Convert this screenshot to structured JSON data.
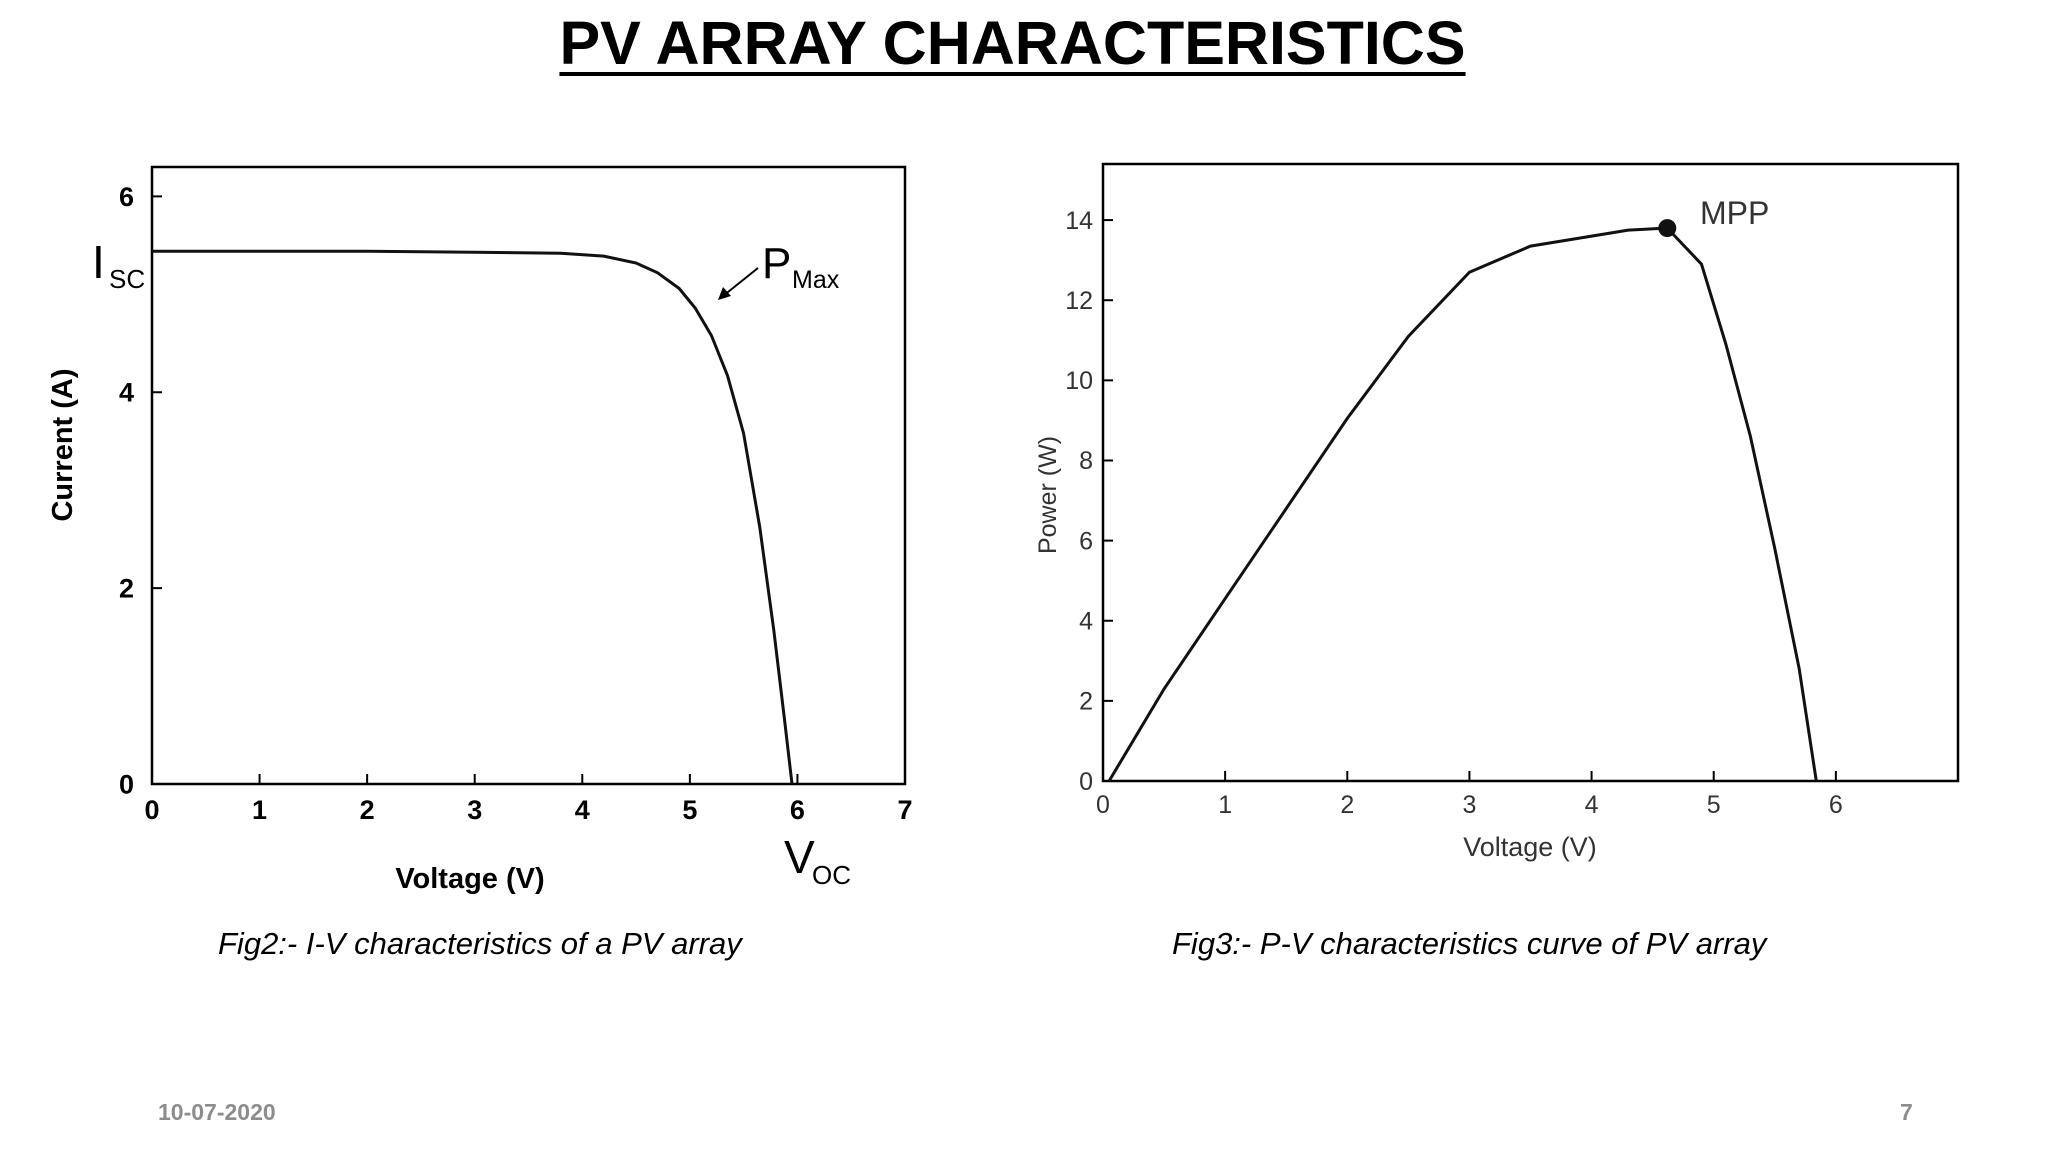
{
  "slide": {
    "title": "PV ARRAY CHARACTERISTICS",
    "date": "10-07-2020",
    "page_number": "7"
  },
  "chart_data": [
    {
      "type": "line",
      "caption": "Fig2:- I-V characteristics of a PV array",
      "xlabel": "Voltage (V)",
      "ylabel": "Current (A)",
      "xlim": [
        0,
        7
      ],
      "ylim": [
        0,
        6.3
      ],
      "x_ticks": [
        0,
        1,
        2,
        3,
        4,
        5,
        6,
        7
      ],
      "y_ticks": [
        0,
        2,
        4,
        6
      ],
      "grid": false,
      "annotations": {
        "isc_main": "I",
        "isc_sub": "SC",
        "pmax_main": "P",
        "pmax_sub": "Max",
        "voc_main": "V",
        "voc_sub": "OC"
      },
      "series": [
        {
          "points": [
            [
              0,
              5.44
            ],
            [
              1,
              5.44
            ],
            [
              2,
              5.44
            ],
            [
              3,
              5.43
            ],
            [
              3.8,
              5.42
            ],
            [
              4.2,
              5.39
            ],
            [
              4.5,
              5.32
            ],
            [
              4.7,
              5.22
            ],
            [
              4.9,
              5.06
            ],
            [
              5.05,
              4.86
            ],
            [
              5.2,
              4.58
            ],
            [
              5.35,
              4.17
            ],
            [
              5.5,
              3.58
            ],
            [
              5.65,
              2.62
            ],
            [
              5.78,
              1.57
            ],
            [
              5.88,
              0.66
            ],
            [
              5.95,
              0
            ]
          ],
          "color": "#111111"
        }
      ]
    },
    {
      "type": "line",
      "caption": "Fig3:- P-V characteristics curve of PV array",
      "xlabel": "Voltage (V)",
      "ylabel": "Power (W)",
      "xlim": [
        0,
        7
      ],
      "ylim": [
        0,
        15.4
      ],
      "x_ticks": [
        0,
        1,
        2,
        3,
        4,
        5,
        6
      ],
      "y_ticks": [
        0,
        2,
        4,
        6,
        8,
        10,
        12,
        14
      ],
      "grid": false,
      "annotation": "MPP",
      "mpp": [
        4.62,
        13.8
      ],
      "series": [
        {
          "points": [
            [
              0.05,
              0
            ],
            [
              0.5,
              2.3
            ],
            [
              1,
              4.55
            ],
            [
              1.5,
              6.8
            ],
            [
              2,
              9.05
            ],
            [
              2.5,
              11.1
            ],
            [
              3,
              12.7
            ],
            [
              3.5,
              13.35
            ],
            [
              4,
              13.6
            ],
            [
              4.3,
              13.75
            ],
            [
              4.62,
              13.8
            ],
            [
              4.9,
              12.9
            ],
            [
              5.1,
              10.9
            ],
            [
              5.3,
              8.6
            ],
            [
              5.5,
              5.8
            ],
            [
              5.7,
              2.8
            ],
            [
              5.84,
              0
            ]
          ],
          "color": "#111111"
        }
      ]
    }
  ]
}
